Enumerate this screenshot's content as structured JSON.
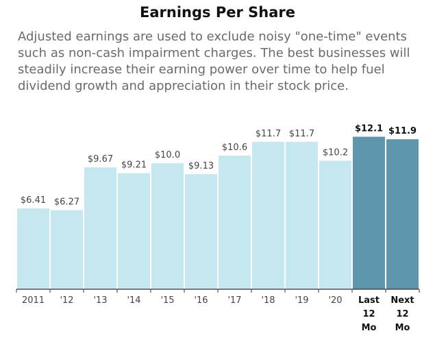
{
  "header": {
    "title": "Earnings Per Share",
    "description": "Adjusted earnings are used to exclude noisy \"one-time\" events such as non-cash impairment charges. The best businesses will steadily increase their earning power over time to help fuel dividend growth and appreciation in their stock price."
  },
  "chart_data": {
    "type": "bar",
    "title": "Earnings Per Share",
    "categories": [
      "2011",
      "'12",
      "'13",
      "'14",
      "'15",
      "'16",
      "'17",
      "'18",
      "'19",
      "'20",
      "Last 12 Mo",
      "Next 12 Mo"
    ],
    "category_label_lines": [
      [
        "2011"
      ],
      [
        "'12"
      ],
      [
        "'13"
      ],
      [
        "'14"
      ],
      [
        "'15"
      ],
      [
        "'16"
      ],
      [
        "'17"
      ],
      [
        "'18"
      ],
      [
        "'19"
      ],
      [
        "'20"
      ],
      [
        "Last",
        "12",
        "Mo"
      ],
      [
        "Next",
        "12",
        "Mo"
      ]
    ],
    "values": [
      6.41,
      6.27,
      9.67,
      9.21,
      10.0,
      9.13,
      10.6,
      11.7,
      11.7,
      10.2,
      12.1,
      11.9
    ],
    "value_labels": [
      "$6.41",
      "$6.27",
      "$9.67",
      "$9.21",
      "$10.0",
      "$9.13",
      "$10.6",
      "$11.7",
      "$11.7",
      "$10.2",
      "$12.1",
      "$11.9"
    ],
    "highlight": [
      false,
      false,
      false,
      false,
      false,
      false,
      false,
      false,
      false,
      false,
      true,
      true
    ],
    "ylim": [
      0,
      12.4
    ],
    "xlabel": "",
    "ylabel": "",
    "grid": false,
    "colors": {
      "bar": "#c5e8f0",
      "bar_highlight": "#5e97ad",
      "axis": "#333333",
      "label": "#444444",
      "label_highlight": "#111111"
    }
  }
}
